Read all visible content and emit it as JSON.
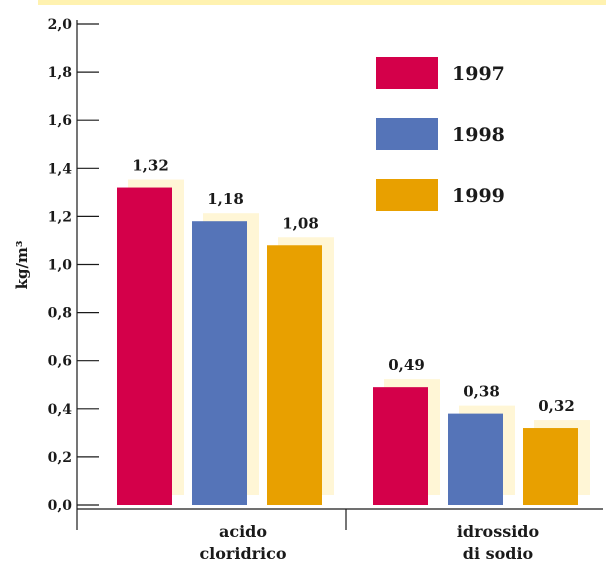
{
  "colors": {
    "top_band": "#fff2b0",
    "bar_shadow": "#fff6d6",
    "axis": "#1a1a1a"
  },
  "chart_data": {
    "type": "bar",
    "title": "",
    "xlabel": "",
    "ylabel": "kg/m³",
    "ylim": [
      0,
      2
    ],
    "yticks": [
      0,
      0.2,
      0.4,
      0.6,
      0.8,
      1.0,
      1.2,
      1.4,
      1.6,
      1.8,
      2.0
    ],
    "ytick_labels": [
      "0,0",
      "0,2",
      "0,4",
      "0,6",
      "0,8",
      "1,0",
      "1,2",
      "1,4",
      "1,6",
      "1,8",
      "2,0"
    ],
    "categories": [
      {
        "lines": [
          "acido",
          "cloridrico"
        ]
      },
      {
        "lines": [
          "idrossido",
          "di sodio"
        ]
      }
    ],
    "series": [
      {
        "name": "1997",
        "color": "#d4004a",
        "values": [
          1.32,
          0.49
        ],
        "labels": [
          "1,32",
          "0,49"
        ]
      },
      {
        "name": "1998",
        "color": "#5574b8",
        "values": [
          1.18,
          0.38
        ],
        "labels": [
          "1,18",
          "0,38"
        ]
      },
      {
        "name": "1999",
        "color": "#e8a000",
        "values": [
          1.08,
          0.32
        ],
        "labels": [
          "1,08",
          "0,32"
        ]
      }
    ],
    "legend_position": "top-right",
    "grid": false
  }
}
